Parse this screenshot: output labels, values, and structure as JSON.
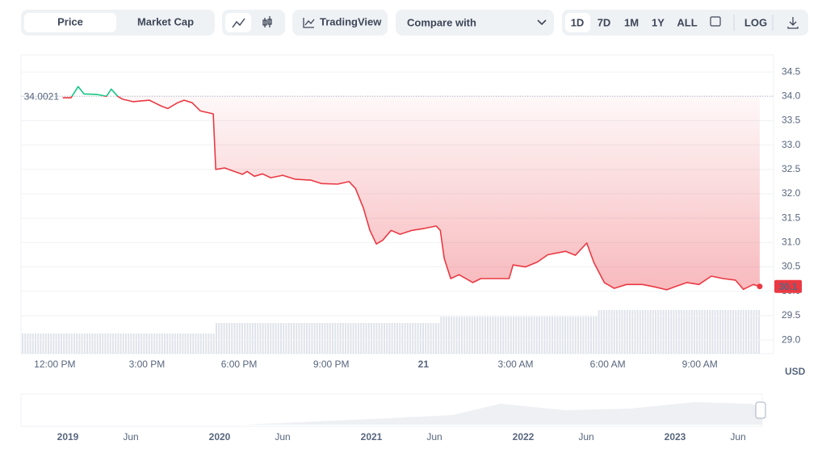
{
  "toolbar": {
    "tabs": [
      "Price",
      "Market Cap"
    ],
    "tradingview": "TradingView",
    "compare": "Compare with",
    "ranges": [
      "1D",
      "7D",
      "1M",
      "1Y",
      "ALL"
    ],
    "log": "LOG"
  },
  "chart_data": {
    "type": "line",
    "y_unit": "USD",
    "baseline": 34.0021,
    "xlim": [
      10.9,
      35.4
    ],
    "ylim": [
      28.72,
      34.85
    ],
    "xticks": [
      {
        "value": 12,
        "label": "12:00 PM"
      },
      {
        "value": 15,
        "label": "3:00 PM"
      },
      {
        "value": 18,
        "label": "6:00 PM"
      },
      {
        "value": 21,
        "label": "9:00 PM"
      },
      {
        "value": 24,
        "label": "21"
      },
      {
        "value": 27,
        "label": "3:00 AM"
      },
      {
        "value": 30,
        "label": "6:00 AM"
      },
      {
        "value": 33,
        "label": "9:00 AM"
      }
    ],
    "yticks": [
      34.5,
      {
        "value": 34,
        "label": "34.0"
      },
      33.5,
      {
        "value": 33,
        "label": "33.0"
      },
      32.5,
      {
        "value": 32,
        "label": "32.0"
      },
      31.5,
      {
        "value": 31,
        "label": "31.0"
      },
      30.5,
      {
        "value": 30,
        "label": "30.0"
      },
      29.5,
      {
        "value": 29,
        "label": "29.0"
      }
    ],
    "grid": true,
    "up_color": "#16c784",
    "down_color": "#ea3943",
    "series": [
      {
        "name": "Price",
        "x": [
          12.26,
          12.53,
          12.76,
          12.95,
          13.37,
          13.68,
          13.84,
          14.05,
          14.21,
          14.55,
          15.08,
          15.47,
          15.68,
          16.0,
          16.21,
          16.47,
          16.74,
          17.16,
          17.24,
          17.53,
          17.84,
          18.11,
          18.26,
          18.5,
          18.76,
          19.03,
          19.42,
          19.82,
          20.34,
          20.68,
          21.21,
          21.58,
          21.79,
          22.05,
          22.26,
          22.47,
          22.68,
          22.95,
          23.24,
          23.63,
          24.03,
          24.42,
          24.55,
          24.68,
          24.89,
          25.16,
          25.61,
          25.87,
          26.39,
          26.79,
          26.92,
          27.32,
          27.71,
          28.05,
          28.63,
          28.95,
          29.32,
          29.55,
          29.89,
          30.21,
          30.61,
          31.13,
          31.53,
          31.92,
          32.18,
          32.58,
          32.97,
          33.37,
          33.76,
          34.16,
          34.42,
          34.74,
          34.95
        ],
        "values": [
          33.97,
          33.97,
          34.2,
          34.05,
          34.04,
          34.0,
          34.15,
          34.0,
          33.94,
          33.89,
          33.92,
          33.8,
          33.75,
          33.87,
          33.92,
          33.87,
          33.7,
          33.64,
          32.5,
          32.53,
          32.46,
          32.4,
          32.46,
          32.36,
          32.41,
          32.33,
          32.38,
          32.3,
          32.28,
          32.21,
          32.2,
          32.25,
          32.11,
          31.7,
          31.25,
          30.97,
          31.05,
          31.25,
          31.17,
          31.25,
          31.29,
          31.34,
          31.25,
          30.67,
          30.26,
          30.34,
          30.18,
          30.26,
          30.26,
          30.26,
          30.54,
          30.5,
          30.6,
          30.75,
          30.82,
          30.74,
          30.99,
          30.59,
          30.18,
          30.06,
          30.14,
          30.14,
          30.09,
          30.03,
          30.09,
          30.18,
          30.14,
          30.31,
          30.26,
          30.23,
          30.04,
          30.14,
          30.1
        ]
      }
    ]
  },
  "navigator": {
    "labels": [
      "2019",
      "Jun",
      "2020",
      "Jun",
      "2021",
      "Jun",
      "2022",
      "Jun",
      "2023",
      "Jun"
    ]
  }
}
